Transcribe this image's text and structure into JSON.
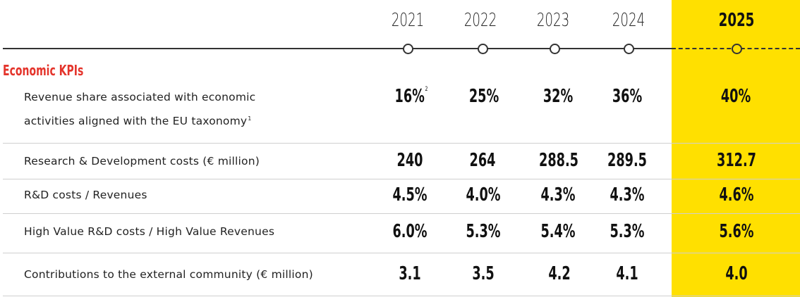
{
  "years": [
    {
      "label": "2021",
      "highlight": false
    },
    {
      "label": "2022",
      "highlight": false
    },
    {
      "label": "2023",
      "highlight": false
    },
    {
      "label": "2024",
      "highlight": false
    },
    {
      "label": "2025",
      "highlight": true
    }
  ],
  "section_title": "Economic KPIs",
  "colors": {
    "highlight": "#FFE000",
    "section_title": "#E4342B"
  },
  "rows": [
    {
      "label_line1": "Revenue share associated with economic",
      "label_line2": "activities aligned with the EU taxonomy",
      "label_footnote": "1",
      "values": [
        "16%",
        "25%",
        "32%",
        "36%",
        "40%"
      ],
      "first_value_footnote": "2"
    },
    {
      "label": "Research & Development costs (€ million)",
      "values": [
        "240",
        "264",
        "288.5",
        "289.5",
        "312.7"
      ]
    },
    {
      "label": "R&D costs / Revenues",
      "values": [
        "4.5%",
        "4.0%",
        "4.3%",
        "4.3%",
        "4.6%"
      ]
    },
    {
      "label": "High Value R&D costs / High Value Revenues",
      "values": [
        "6.0%",
        "5.3%",
        "5.4%",
        "5.3%",
        "5.6%"
      ]
    },
    {
      "label": "Contributions to the external community (€ million)",
      "values": [
        "3.1",
        "3.5",
        "4.2",
        "4.1",
        "4.0"
      ]
    }
  ]
}
